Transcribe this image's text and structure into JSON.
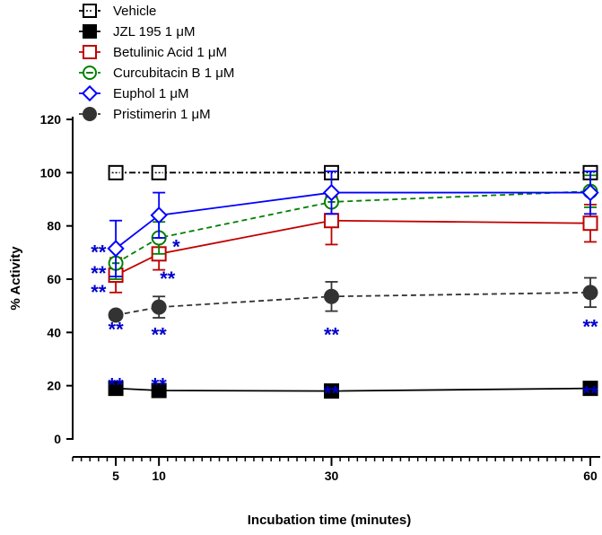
{
  "chart_data": {
    "type": "line",
    "title": "",
    "xlabel": "Incubation time (minutes)",
    "ylabel": "% Activity",
    "x": [
      5,
      10,
      30,
      60
    ],
    "xlim": [
      0,
      60
    ],
    "ylim": [
      0,
      120
    ],
    "xticks": [
      5,
      10,
      30,
      60
    ],
    "yticks": [
      0,
      20,
      40,
      60,
      80,
      100,
      120
    ],
    "grid": false,
    "legend_position": "top-left",
    "series": [
      {
        "name": "Vehicle",
        "color": "#000000",
        "marker": "open-square",
        "line": "dash-dot",
        "values": [
          100,
          100,
          100,
          100
        ],
        "errors": [
          0,
          0,
          0,
          0
        ]
      },
      {
        "name": "JZL 195 1 μM",
        "color": "#000000",
        "marker": "filled-square",
        "line": "solid",
        "values": [
          19,
          18.2,
          18,
          19
        ],
        "errors": [
          0.6,
          0.6,
          0.6,
          0.6
        ]
      },
      {
        "name": "Betulinic Acid 1 μM",
        "color": "#c00000",
        "marker": "open-square",
        "line": "solid",
        "values": [
          61.5,
          69.5,
          82,
          81
        ],
        "errors": [
          6.5,
          6,
          9,
          7
        ]
      },
      {
        "name": "Curcubitacin B 1 μM",
        "color": "#008000",
        "marker": "open-circle",
        "line": "dashed",
        "values": [
          66,
          75.5,
          89,
          93
        ],
        "errors": [
          6,
          6,
          0,
          6
        ]
      },
      {
        "name": "Euphol 1 μM",
        "color": "#0000ff",
        "marker": "open-diamond",
        "line": "solid",
        "values": [
          71.5,
          84,
          92.5,
          92.5
        ],
        "errors": [
          10.5,
          8.5,
          8,
          8
        ]
      },
      {
        "name": "Pristimerin 1 μM",
        "color": "#333333",
        "marker": "filled-circle",
        "line": "dashed",
        "values": [
          46.5,
          49.5,
          53.5,
          55
        ],
        "errors": [
          0,
          4,
          5.5,
          5.5
        ]
      }
    ],
    "annotations": [
      {
        "text": "**",
        "x": 3,
        "y": 71,
        "color": "#0000cc"
      },
      {
        "text": "**",
        "x": 3,
        "y": 63,
        "color": "#0000cc"
      },
      {
        "text": "**",
        "x": 3,
        "y": 56,
        "color": "#0000cc"
      },
      {
        "text": "**",
        "x": 5,
        "y": 42,
        "color": "#0000cc"
      },
      {
        "text": "**",
        "x": 5,
        "y": 21,
        "color": "#0000cc"
      },
      {
        "text": "*",
        "x": 12,
        "y": 73,
        "color": "#0000cc"
      },
      {
        "text": "**",
        "x": 11,
        "y": 61,
        "color": "#0000cc"
      },
      {
        "text": "**",
        "x": 10,
        "y": 40,
        "color": "#0000cc"
      },
      {
        "text": "**",
        "x": 10,
        "y": 21,
        "color": "#0000cc"
      },
      {
        "text": "**",
        "x": 30,
        "y": 40,
        "color": "#0000cc"
      },
      {
        "text": "**",
        "x": 30,
        "y": 18,
        "color": "#0000cc"
      },
      {
        "text": "**",
        "x": 60,
        "y": 43,
        "color": "#0000cc"
      },
      {
        "text": "**",
        "x": 60,
        "y": 18,
        "color": "#0000cc"
      }
    ]
  }
}
